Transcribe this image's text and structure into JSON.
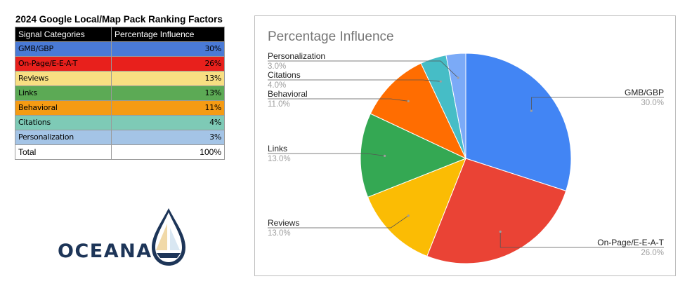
{
  "table": {
    "title": "2024 Google Local/Map Pack Ranking Factors",
    "headers": [
      "Signal Categories",
      "Percentage Influence"
    ],
    "rows": [
      {
        "category": "GMB/GBP",
        "value": "30%",
        "color": "#4a7ad6"
      },
      {
        "category": "On-Page/E-E-A-T",
        "value": "26%",
        "color": "#e8201c"
      },
      {
        "category": "Reviews",
        "value": "13%",
        "color": "#f8df82"
      },
      {
        "category": "Links",
        "value": "13%",
        "color": "#5caa55"
      },
      {
        "category": "Behavioral",
        "value": "11%",
        "color": "#f59b14"
      },
      {
        "category": "Citations",
        "value": "4%",
        "color": "#7ecab6"
      },
      {
        "category": "Personalization",
        "value": "3%",
        "color": "#a4c4e6"
      }
    ],
    "total": {
      "category": "Total",
      "value": "100%"
    }
  },
  "logo": {
    "text": "OCEANA",
    "color": "#1d3558",
    "accent": "#f1d9a8"
  },
  "chart_data": {
    "type": "pie",
    "title": "Percentage Influence",
    "categories": [
      "GMB/GBP",
      "On-Page/E-E-A-T",
      "Reviews",
      "Links",
      "Behavioral",
      "Citations",
      "Personalization"
    ],
    "values": [
      30,
      26,
      13,
      13,
      11,
      4,
      3
    ],
    "value_labels": [
      "30.0%",
      "26.0%",
      "13.0%",
      "13.0%",
      "11.0%",
      "4.0%",
      "3.0%"
    ],
    "colors": [
      "#4285f4",
      "#ea4335",
      "#fbbc04",
      "#34a853",
      "#ff6d01",
      "#46bdc6",
      "#7baaf7"
    ],
    "legend": "labels beside slices"
  }
}
